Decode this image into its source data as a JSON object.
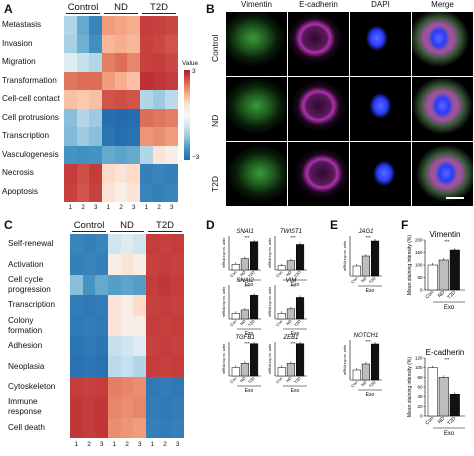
{
  "panels": {
    "A": "A",
    "B": "B",
    "C": "C",
    "D": "D",
    "E": "E",
    "F": "F"
  },
  "heatmap_A": {
    "groups": [
      "Control",
      "ND",
      "T2D"
    ],
    "rows": [
      "Metastasis",
      "Invasion",
      "Migration",
      "Transformation",
      "Cell-cell contact",
      "Cell protrusions",
      "Transcription",
      "Vasculogenesis",
      "Necrosis",
      "Apoptosis"
    ],
    "col_nums": [
      "1",
      "2",
      "3",
      "1",
      "2",
      "3",
      "1",
      "2",
      "3"
    ],
    "values": [
      [
        -0.6,
        -1.4,
        -2.2,
        1.0,
        0.9,
        0.8,
        2.4,
        2.3,
        2.2
      ],
      [
        -0.7,
        -1.3,
        -1.9,
        0.7,
        0.8,
        0.7,
        2.3,
        2.2,
        2.0
      ],
      [
        -0.2,
        -0.4,
        -0.6,
        1.4,
        1.6,
        1.3,
        2.3,
        2.4,
        2.2
      ],
      [
        1.5,
        1.6,
        1.6,
        1.0,
        0.8,
        0.6,
        2.6,
        2.5,
        2.4
      ],
      [
        0.6,
        0.5,
        0.6,
        2.0,
        2.1,
        2.0,
        -0.6,
        -0.8,
        -0.5
      ],
      [
        -1.0,
        -0.6,
        -0.8,
        -2.8,
        -2.9,
        -2.8,
        1.6,
        1.5,
        1.4
      ],
      [
        -1.1,
        -0.8,
        -1.0,
        -2.6,
        -2.8,
        -2.7,
        1.1,
        1.2,
        1.0
      ],
      [
        -1.8,
        -1.9,
        -1.8,
        -1.4,
        -1.5,
        -1.4,
        -0.6,
        0.2,
        0.1
      ],
      [
        2.4,
        2.1,
        2.4,
        0.3,
        0.2,
        0.3,
        -2.3,
        -2.2,
        -2.3
      ],
      [
        2.3,
        2.0,
        2.3,
        0.2,
        0.1,
        0.2,
        -2.2,
        -2.3,
        -2.2
      ]
    ],
    "colorbar": {
      "title": "Value",
      "max": "3",
      "min": "−3"
    }
  },
  "heatmap_C": {
    "groups": [
      "Control",
      "ND",
      "T2D"
    ],
    "rows": [
      "Self-renewal",
      "Activation",
      "Cell cycle\nprogression",
      "Transcription",
      "Colony\nformation",
      "Adhesion",
      "Neoplasia",
      "Cytoskeleton",
      "Immune\nresponse",
      "Cell death"
    ],
    "col_nums": [
      "1",
      "2",
      "3",
      "1",
      "2",
      "3",
      "1",
      "2",
      "3"
    ],
    "values": [
      [
        -2.2,
        -2.3,
        -2.2,
        -0.3,
        -0.2,
        -0.3,
        2.4,
        2.3,
        2.4
      ],
      [
        -2.3,
        -2.2,
        -2.3,
        0.1,
        0.2,
        0.1,
        2.3,
        2.4,
        2.3
      ],
      [
        -1.0,
        -1.8,
        -1.4,
        -1.6,
        -1.5,
        -1.6,
        2.4,
        2.5,
        2.4
      ],
      [
        -2.4,
        -2.5,
        -2.4,
        0.2,
        0.1,
        0.3,
        2.3,
        2.4,
        2.3
      ],
      [
        -2.5,
        -2.4,
        -2.5,
        0.2,
        0.1,
        0.1,
        2.4,
        2.3,
        2.4
      ],
      [
        -2.6,
        -2.5,
        -2.6,
        -0.4,
        -0.3,
        -0.2,
        2.3,
        2.4,
        2.3
      ],
      [
        -2.7,
        -2.6,
        -2.7,
        -0.5,
        -0.4,
        -0.6,
        2.4,
        2.3,
        2.4
      ],
      [
        2.4,
        2.3,
        2.4,
        1.4,
        1.3,
        1.2,
        -2.5,
        -2.4,
        -2.5
      ],
      [
        2.5,
        2.4,
        2.5,
        1.3,
        1.2,
        1.3,
        -2.4,
        -2.5,
        -2.4
      ],
      [
        2.5,
        2.4,
        2.5,
        1.2,
        1.1,
        1.0,
        -2.3,
        -2.4,
        -2.3
      ]
    ]
  },
  "microscopy": {
    "columns": [
      "Vimentin",
      "E-cadherin",
      "DAPI",
      "Merge"
    ],
    "rows": [
      "Control",
      "ND",
      "T2D"
    ],
    "colors": {
      "vimentin": "#3a9a3a",
      "ecad": "#b030b0",
      "dapi": "#2a3aff"
    }
  },
  "bars_D": {
    "groups_label": "Exo",
    "xcats": [
      "Con",
      "ND",
      "T2D"
    ],
    "ylabel": "mRNA exp vs. actin",
    "charts": [
      {
        "title": "SNAI1",
        "values": [
          1.0,
          2.0,
          5.0
        ],
        "ymax": "6"
      },
      {
        "title": "TWIST1",
        "values": [
          1.0,
          2.2,
          6.0
        ],
        "ymax": "8"
      },
      {
        "title": "SNAI2",
        "values": [
          1.0,
          1.6,
          4.2
        ],
        "ymax": "6"
      },
      {
        "title": "VIM",
        "values": [
          1.0,
          1.8,
          3.8
        ],
        "ymax": "6"
      },
      {
        "title": "TGFB1",
        "values": [
          1.0,
          1.5,
          3.8
        ],
        "ymax": "4"
      },
      {
        "title": "ZEB1",
        "values": [
          1.0,
          1.5,
          3.8
        ],
        "ymax": "4"
      }
    ]
  },
  "bars_E": {
    "groups_label": "Exo",
    "xcats": [
      "Con",
      "ND",
      "T2D"
    ],
    "ylabel": "mRNA exp vs. actin",
    "charts": [
      {
        "title": "JAG1",
        "values": [
          1.0,
          2.0,
          3.5
        ],
        "ymax": "4"
      },
      {
        "title": "NOTCH1",
        "values": [
          1.0,
          1.6,
          3.6
        ],
        "ymax": "4"
      }
    ]
  },
  "bars_F": {
    "groups_label": "Exo",
    "xcats": [
      "Con",
      "ND",
      "T2D"
    ],
    "ylabel": "Mean staining intensity (%)",
    "charts": [
      {
        "title": "Vimentin",
        "values": [
          100,
          120,
          160
        ],
        "ymax": "200",
        "ticks": [
          "0",
          "50",
          "100",
          "150",
          "200"
        ]
      },
      {
        "title": "E-cadherin",
        "values": [
          100,
          80,
          45
        ],
        "ymax": "120",
        "ticks": [
          "0",
          "20",
          "40",
          "60",
          "80",
          "100",
          "120"
        ]
      }
    ]
  },
  "sig": {
    "s1": "*",
    "s2": "**",
    "s3": "***",
    "ns": "ns"
  }
}
